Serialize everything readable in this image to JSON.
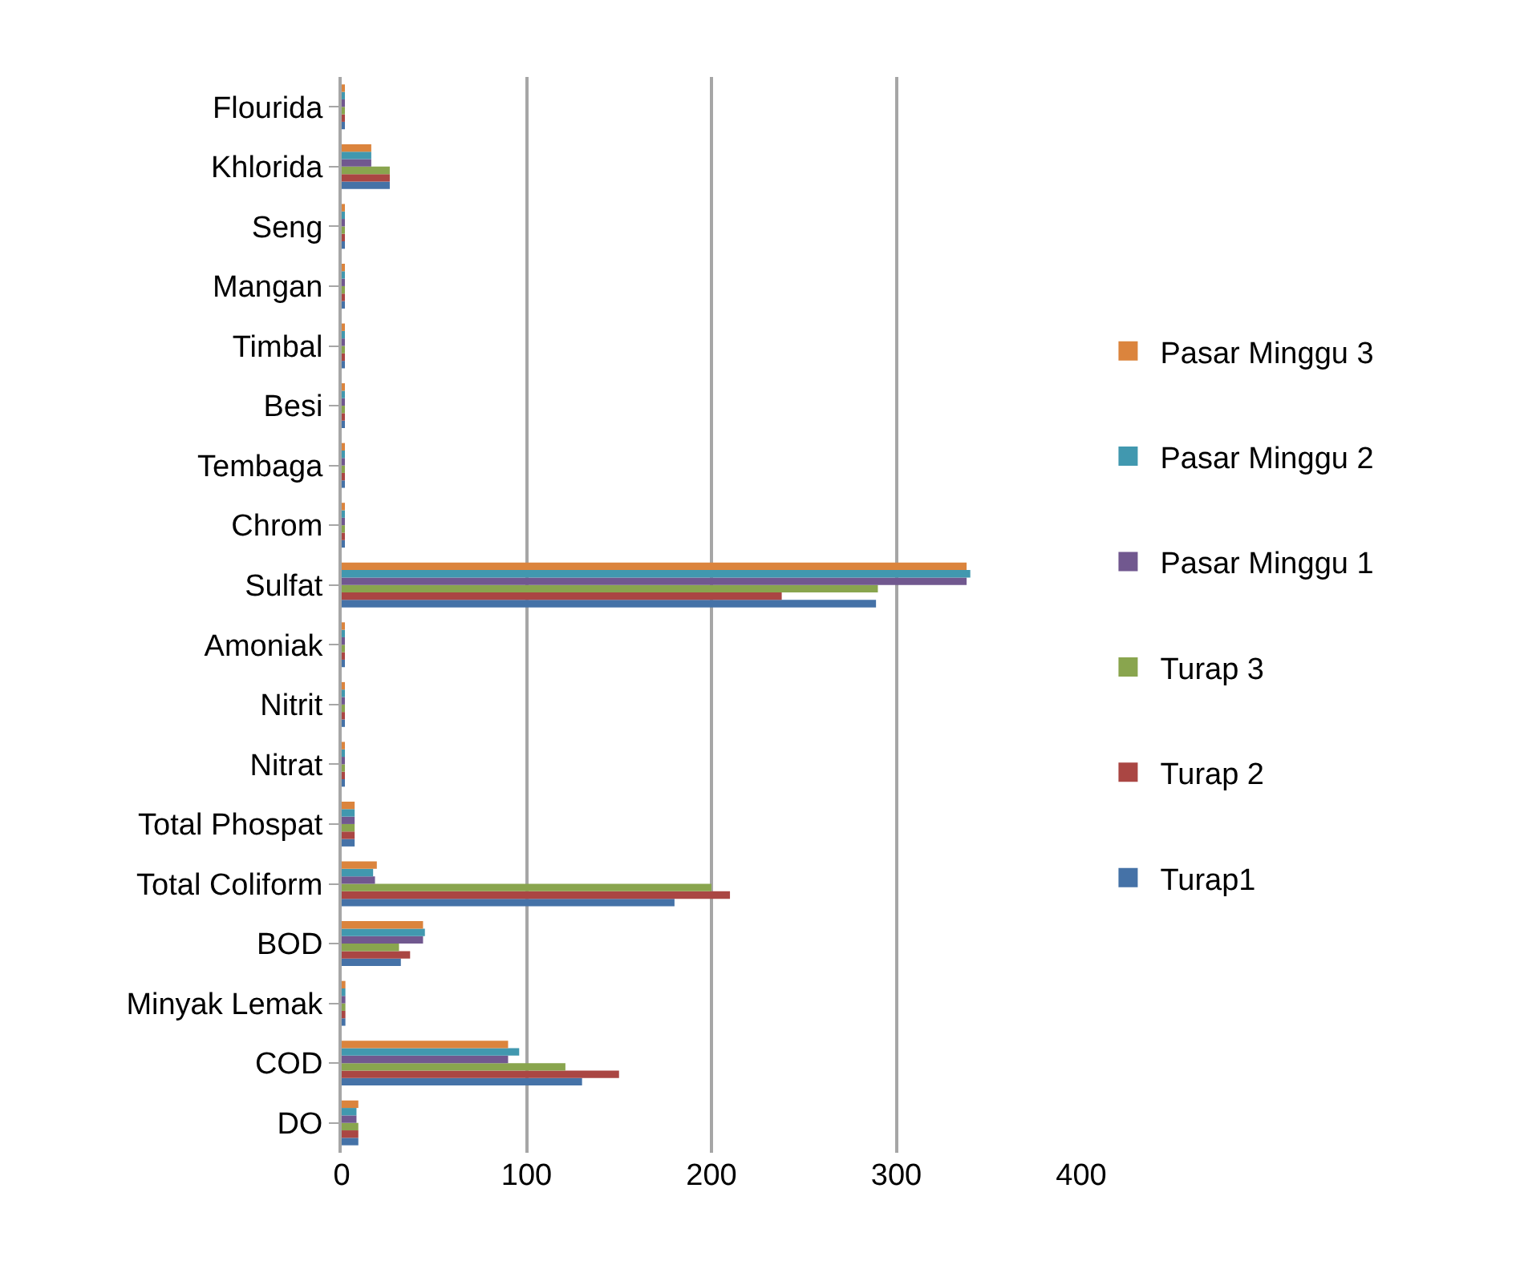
{
  "chart_data": {
    "type": "bar",
    "orientation": "horizontal",
    "categories": [
      "Flourida",
      "Khlorida",
      "Seng",
      "Mangan",
      "Timbal",
      "Besi",
      "Tembaga",
      "Chrom",
      "Sulfat",
      "Amoniak",
      "Nitrit",
      "Nitrat",
      "Total Phospat",
      "Total Coliform",
      "BOD",
      "Minyak Lemak",
      "COD",
      "DO"
    ],
    "series": [
      {
        "name": "Turap1",
        "color": "#4572a7",
        "values": [
          1,
          26,
          1,
          1,
          1,
          1,
          1,
          1,
          289,
          1,
          1,
          1,
          7,
          180,
          32,
          2,
          130,
          9
        ]
      },
      {
        "name": "Turap 2",
        "color": "#aa4643",
        "values": [
          1,
          26,
          1,
          1,
          1,
          1,
          1,
          1,
          238,
          1,
          1,
          1,
          7,
          210,
          37,
          2,
          150,
          9
        ]
      },
      {
        "name": "Turap 3",
        "color": "#89a54e",
        "values": [
          1,
          26,
          1,
          1,
          1,
          1,
          1,
          1,
          290,
          1,
          1,
          1,
          7,
          200,
          31,
          2,
          121,
          9
        ]
      },
      {
        "name": "Pasar Minggu 1",
        "color": "#71588f",
        "values": [
          1,
          16,
          1,
          1,
          1,
          1,
          1,
          1,
          338,
          1,
          1,
          1,
          7,
          18,
          44,
          2,
          90,
          8
        ]
      },
      {
        "name": "Pasar Minggu 2",
        "color": "#4198af",
        "values": [
          1,
          16,
          1,
          1,
          1,
          1,
          1,
          1,
          340,
          1,
          1,
          1,
          7,
          17,
          45,
          2,
          96,
          8
        ]
      },
      {
        "name": "Pasar Minggu 3",
        "color": "#db843d",
        "values": [
          1,
          16,
          1,
          1,
          1,
          1,
          1,
          1,
          338,
          1,
          1,
          1,
          7,
          19,
          44,
          2,
          90,
          9
        ]
      }
    ],
    "xlim": [
      0,
      400
    ],
    "xticks": [
      0,
      100,
      200,
      300,
      400
    ],
    "grid": "x",
    "legend": "right"
  }
}
